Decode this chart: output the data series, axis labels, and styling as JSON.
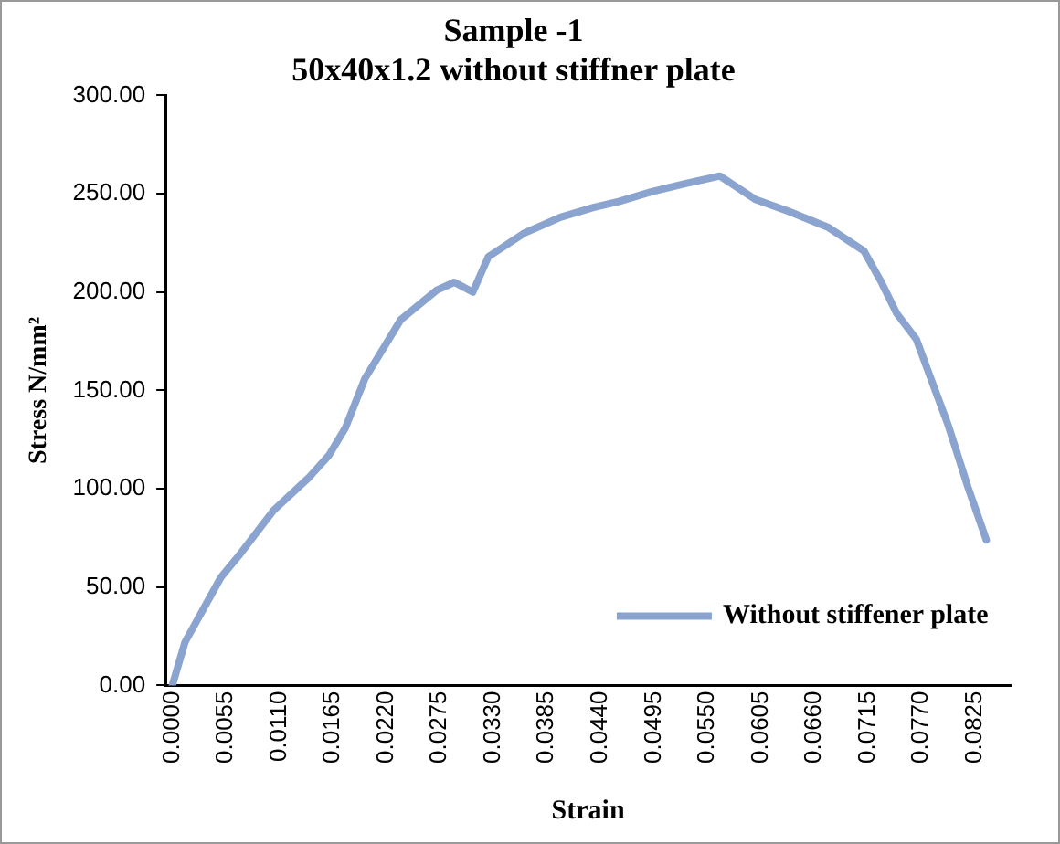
{
  "chart_data": {
    "type": "line",
    "title": [
      "Sample -1",
      "50x40x1.2 without stiffner plate"
    ],
    "xlabel": "Strain",
    "ylabel": "Stress N/mm²",
    "x": [
      0,
      0.0013,
      0.005,
      0.007,
      0.0104,
      0.0141,
      0.0161,
      0.0178,
      0.0198,
      0.0235,
      0.0272,
      0.029,
      0.0309,
      0.0325,
      0.0362,
      0.0399,
      0.0433,
      0.0459,
      0.0493,
      0.0526,
      0.0563,
      0.06,
      0.0634,
      0.0674,
      0.0711,
      0.0728,
      0.0745,
      0.0765,
      0.0798,
      0.0818,
      0.0837
    ],
    "series": [
      {
        "name": "Without stiffener plate",
        "color": "#8aa4cf",
        "values": [
          0,
          22,
          55,
          67,
          89,
          106,
          117,
          131,
          156,
          186,
          201,
          205,
          200,
          218,
          230,
          238,
          243,
          246,
          251,
          255,
          259,
          247,
          241,
          233,
          221,
          206,
          189,
          176,
          132,
          101,
          74
        ]
      }
    ],
    "xlim": [
      -0.0007,
      0.0862
    ],
    "xticks": [
      {
        "value": 0,
        "label": "0.0000"
      },
      {
        "value": 0.0055,
        "label": "0.0055"
      },
      {
        "value": 0.011,
        "label": "0.0110"
      },
      {
        "value": 0.0165,
        "label": "0.0165"
      },
      {
        "value": 0.022,
        "label": "0.0220"
      },
      {
        "value": 0.0275,
        "label": "0.0275"
      },
      {
        "value": 0.033,
        "label": "0.0330"
      },
      {
        "value": 0.0385,
        "label": "0.0385"
      },
      {
        "value": 0.044,
        "label": "0.0440"
      },
      {
        "value": 0.0495,
        "label": "0.0495"
      },
      {
        "value": 0.055,
        "label": "0.0550"
      },
      {
        "value": 0.0605,
        "label": "0.0605"
      },
      {
        "value": 0.066,
        "label": "0.0660"
      },
      {
        "value": 0.0715,
        "label": "0.0715"
      },
      {
        "value": 0.077,
        "label": "0.0770"
      },
      {
        "value": 0.0825,
        "label": "0.0825"
      }
    ],
    "ylim": [
      0,
      300
    ],
    "yticks": [
      {
        "value": 0,
        "label": "0.00"
      },
      {
        "value": 50,
        "label": "50.00"
      },
      {
        "value": 100,
        "label": "100.00"
      },
      {
        "value": 150,
        "label": "150.00"
      },
      {
        "value": 200,
        "label": "200.00"
      },
      {
        "value": 250,
        "label": "250.00"
      },
      {
        "value": 300,
        "label": "300.00"
      }
    ],
    "grid": false,
    "legend": "bottom right",
    "marker": "none",
    "line_style": "solid"
  }
}
